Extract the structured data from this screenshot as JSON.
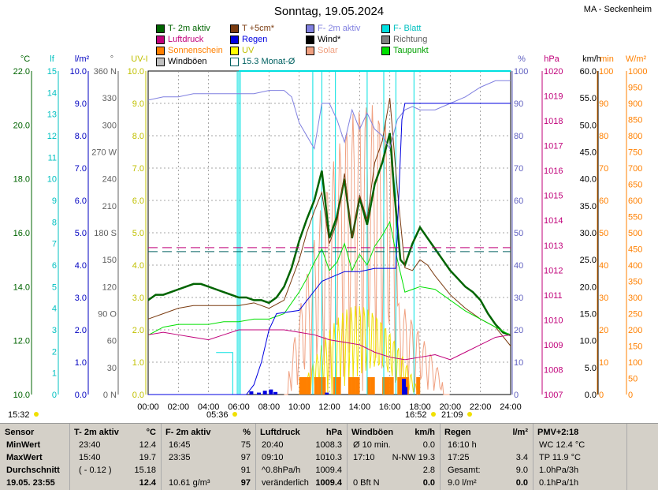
{
  "title": "Sonntag, 19.05.2024",
  "station": "MA - Seckenheim",
  "legend": [
    {
      "label": "T- 2m aktiv",
      "color": "#006400"
    },
    {
      "label": "T +5cm*",
      "color": "#7a3b10"
    },
    {
      "label": "F- 2m aktiv",
      "color": "#8080e0"
    },
    {
      "label": "F- Blatt",
      "color": "#00e0e0"
    },
    {
      "label": "Luftdruck",
      "color": "#c0007a"
    },
    {
      "label": "Regen",
      "color": "#0000e0"
    },
    {
      "label": "Wind*",
      "color": "#000000"
    },
    {
      "label": "Richtung",
      "color": "#808080"
    },
    {
      "label": "Sonnenschein",
      "color": "#ff8000"
    },
    {
      "label": "UV",
      "color": "#ffff00"
    },
    {
      "label": "Solar",
      "color": "#f0a080"
    },
    {
      "label": "Taupunkt",
      "color": "#00e000"
    },
    {
      "label": "Windböen",
      "color": "#c0c0c0"
    },
    {
      "label": "15.3 Monat-Ø",
      "color": "#ffffff"
    }
  ],
  "axes": {
    "temp": {
      "unit": "°C",
      "ticks": [
        "22.0",
        "20.0",
        "18.0",
        "16.0",
        "14.0",
        "12.0",
        "10.0"
      ],
      "color": "#006400"
    },
    "leaf": {
      "unit": "lf",
      "ticks": [
        "15",
        "14",
        "13",
        "12",
        "11",
        "10",
        "9",
        "8",
        "7",
        "6",
        "5",
        "4",
        "3",
        "2",
        "1",
        "0"
      ],
      "color": "#00c0c0"
    },
    "rain": {
      "unit": "l/m²",
      "ticks": [
        "10.0",
        "9.0",
        "8.0",
        "7.0",
        "6.0",
        "5.0",
        "4.0",
        "3.0",
        "2.0",
        "1.0",
        "0.0"
      ],
      "color": "#0000c0"
    },
    "dir": {
      "unit": "°",
      "ticks": [
        "360 N",
        "330",
        "300",
        "270 W",
        "240",
        "210",
        "180 S",
        "150",
        "120",
        "90 O",
        "60",
        "30",
        "0 N"
      ],
      "color": "#606060"
    },
    "uv": {
      "unit": "UV-I",
      "ticks": [
        "10.0",
        "9.0",
        "8.0",
        "7.0",
        "6.0",
        "5.0",
        "4.0",
        "3.0",
        "2.0",
        "1.0",
        "0.0"
      ],
      "color": "#c0c000"
    },
    "hum": {
      "unit": "%",
      "ticks": [
        "100",
        "90",
        "80",
        "70",
        "60",
        "50",
        "40",
        "30",
        "20",
        "10",
        "0"
      ],
      "color": "#6060c0"
    },
    "press": {
      "unit": "hPa",
      "ticks": [
        "1020",
        "1019",
        "1018",
        "1017",
        "1016",
        "1015",
        "1014",
        "1013",
        "1012",
        "1011",
        "1010",
        "1009",
        "1008",
        "1007"
      ],
      "color": "#c0007a"
    },
    "wind": {
      "unit": "km/h",
      "ticks": [
        "60.0",
        "55.0",
        "50.0",
        "45.0",
        "40.0",
        "35.0",
        "30.0",
        "25.0",
        "20.0",
        "15.0",
        "10.0",
        "5.0",
        "0.0"
      ],
      "color": "#000000"
    },
    "min": {
      "unit": "min",
      "ticks": [
        "100",
        "90",
        "80",
        "70",
        "60",
        "50",
        "40",
        "30",
        "20",
        "10",
        "0"
      ],
      "color": "#ff8000"
    },
    "solar": {
      "unit": "W/m²",
      "ticks": [
        "1000",
        "950",
        "900",
        "850",
        "800",
        "750",
        "700",
        "650",
        "600",
        "550",
        "500",
        "450",
        "400",
        "350",
        "300",
        "250",
        "200",
        "150",
        "100",
        "50",
        "0"
      ],
      "color": "#ff8000"
    },
    "x": {
      "ticks": [
        "00:00",
        "02:00",
        "04:00",
        "06:00",
        "08:00",
        "10:00",
        "12:00",
        "14:00",
        "16:00",
        "18:00",
        "20:00",
        "22:00",
        "24:00"
      ]
    }
  },
  "events": {
    "left": "15:32",
    "sunrise": "05:36",
    "max": "16:52",
    "sunset": "21:09"
  },
  "chart_data": {
    "type": "line",
    "x_range": [
      0,
      24
    ],
    "series": [
      {
        "name": "T- 2m aktiv",
        "axis": "temp",
        "color": "#006400",
        "x": [
          0,
          0.5,
          1,
          1.5,
          2,
          2.5,
          3,
          3.5,
          4,
          4.5,
          5,
          5.5,
          6,
          6.5,
          7,
          7.5,
          8,
          8.5,
          9,
          9.5,
          10,
          10.5,
          11,
          11.5,
          12,
          12.5,
          13,
          13.5,
          14,
          14.5,
          15,
          15.5,
          16,
          16.3,
          16.7,
          17,
          17.5,
          18,
          18.5,
          19,
          19.5,
          20,
          20.5,
          21,
          21.5,
          22,
          22.5,
          23,
          23.5,
          24
        ],
        "y": [
          13.5,
          13.7,
          13.7,
          13.8,
          13.9,
          14.0,
          14.1,
          14.1,
          14.0,
          13.9,
          13.8,
          13.7,
          13.6,
          13.6,
          13.5,
          13.5,
          13.4,
          13.6,
          14.0,
          14.7,
          15.7,
          16.5,
          17.2,
          18.3,
          15.8,
          16.6,
          18.0,
          15.8,
          17.3,
          16.3,
          17.8,
          18.6,
          19.7,
          17.5,
          15.0,
          14.8,
          15.6,
          16.2,
          15.8,
          15.4,
          15.0,
          14.6,
          14.3,
          14.0,
          13.8,
          13.5,
          13.0,
          12.6,
          12.3,
          12.2
        ]
      },
      {
        "name": "T +5cm*",
        "axis": "temp",
        "color": "#7a3b10",
        "x": [
          0,
          1,
          2,
          3,
          4,
          5,
          6,
          7,
          8,
          9,
          10,
          10.5,
          11,
          11.5,
          12,
          12.5,
          13,
          13.5,
          14,
          14.5,
          15,
          15.5,
          16,
          16.5,
          17,
          17.5,
          18,
          18.5,
          19,
          20,
          21,
          22,
          23,
          24
        ],
        "y": [
          12.8,
          13.0,
          13.2,
          13.3,
          13.3,
          13.3,
          13.3,
          13.4,
          13.2,
          13.5,
          15.0,
          16.0,
          16.8,
          17.5,
          15.6,
          16.4,
          18.2,
          15.8,
          17.4,
          16.5,
          18.6,
          19.4,
          21.0,
          17.6,
          14.7,
          14.6,
          15.0,
          14.8,
          14.4,
          13.7,
          13.2,
          12.8,
          12.5,
          11.8
        ]
      },
      {
        "name": "Taupunkt",
        "axis": "temp",
        "color": "#00e000",
        "x": [
          0,
          1,
          2,
          3,
          4,
          5,
          6,
          7,
          8,
          9,
          10,
          10.5,
          11,
          11.5,
          12,
          12.5,
          13,
          13.5,
          14,
          14.5,
          15,
          15.5,
          16,
          16.5,
          17,
          17.5,
          18,
          19,
          20,
          21,
          22,
          23,
          24
        ],
        "y": [
          12.2,
          12.5,
          12.6,
          12.6,
          12.6,
          12.7,
          12.7,
          12.8,
          12.8,
          13.0,
          13.8,
          14.3,
          14.9,
          15.4,
          14.6,
          14.9,
          15.6,
          14.6,
          15.2,
          14.8,
          15.5,
          15.9,
          16.4,
          15.0,
          13.8,
          13.9,
          14.0,
          13.9,
          13.5,
          13.1,
          12.8,
          12.5,
          12.2
        ]
      },
      {
        "name": "F- 2m aktiv",
        "axis": "hum",
        "color": "#8080e0",
        "x": [
          0,
          1,
          2,
          3,
          4,
          5,
          6,
          7,
          8,
          9,
          9.5,
          10,
          10.5,
          11,
          11.5,
          12,
          12.5,
          13,
          13.5,
          14,
          14.5,
          15,
          15.5,
          16,
          16.5,
          17,
          17.5,
          18,
          19,
          20,
          21,
          22,
          23,
          24
        ],
        "y": [
          91,
          92,
          92,
          93,
          93,
          93,
          93,
          93,
          94,
          94,
          92,
          84,
          80,
          76,
          90,
          90,
          85,
          78,
          88,
          82,
          87,
          82,
          80,
          76,
          85,
          88,
          89,
          88,
          88,
          90,
          92,
          95,
          97,
          97
        ]
      },
      {
        "name": "Luftdruck",
        "axis": "press",
        "color": "#c0007a",
        "x": [
          0,
          1,
          2,
          3,
          4,
          5,
          6,
          7,
          8,
          9,
          10,
          11,
          12,
          13,
          14,
          15,
          16,
          17,
          18,
          19,
          20,
          21,
          22,
          23,
          24
        ],
        "y": [
          1009.4,
          1009.5,
          1009.4,
          1009.3,
          1009.2,
          1009.4,
          1009.6,
          1009.6,
          1009.6,
          1009.6,
          1009.5,
          1009.4,
          1009.2,
          1009.1,
          1009.0,
          1008.7,
          1008.5,
          1008.4,
          1008.5,
          1008.6,
          1008.4,
          1008.7,
          1009.0,
          1009.3,
          1009.4
        ]
      },
      {
        "name": "Regen",
        "axis": "rain",
        "color": "#0000e0",
        "x": [
          0,
          6.5,
          7,
          7.5,
          8,
          8.5,
          10,
          11.5,
          12,
          13,
          14,
          15,
          16,
          16.4,
          16.8,
          17,
          18,
          20,
          22,
          24
        ],
        "y": [
          0,
          0,
          0.3,
          1.0,
          2.0,
          2.5,
          2.6,
          3.5,
          3.6,
          3.8,
          3.8,
          3.9,
          3.9,
          3.9,
          8.5,
          9.0,
          9.0,
          9.0,
          9.0,
          9.0
        ]
      },
      {
        "name": "Monat-Ø",
        "axis": "temp",
        "color": "#006060",
        "x": [
          0,
          24
        ],
        "y": [
          15.3,
          15.3
        ]
      },
      {
        "name": "Luftdruck-Ø",
        "axis": "press",
        "color": "#c0007a",
        "x": [
          0,
          24
        ],
        "y": [
          1012.9,
          1012.9
        ]
      }
    ]
  },
  "table": {
    "headers": [
      {
        "label": "Sensor",
        "unit": ""
      },
      {
        "label": "T- 2m aktiv",
        "unit": "°C"
      },
      {
        "label": "F- 2m aktiv",
        "unit": "%"
      },
      {
        "label": "Luftdruck",
        "unit": "hPa"
      },
      {
        "label": "Windböen",
        "unit": "km/h"
      },
      {
        "label": "Regen",
        "unit": "l/m²"
      },
      {
        "label": "PMV+2:18",
        "unit": ""
      }
    ],
    "rows": [
      [
        "MinWert",
        "23:40",
        "12.4",
        "16:45",
        "75",
        "20:40",
        "1008.3",
        "Ø 10 min.",
        "0.0",
        "16:10 h",
        "",
        "WC 12.4 °C"
      ],
      [
        "MaxWert",
        "15:40",
        "19.7",
        "23:35",
        "97",
        "09:10",
        "1010.3",
        "17:10",
        "N-NW 19.3",
        "17:25",
        "3.4",
        "TP 11.9 °C"
      ],
      [
        "Durchschnitt",
        "( - 0.12 )",
        "15.18",
        "",
        "91",
        "^0.8hPa/h",
        "1009.4",
        "",
        "2.8",
        "Gesamt:",
        "9.0",
        "1.0hPa/3h"
      ],
      [
        "19.05. 23:55",
        "",
        "12.4",
        "10.61 g/m³",
        "97",
        "veränderlich",
        "1009.4",
        "0 Bft N",
        "0.0",
        "9.0 l/m²",
        "0.0",
        "0.1hPa/1h"
      ]
    ]
  }
}
